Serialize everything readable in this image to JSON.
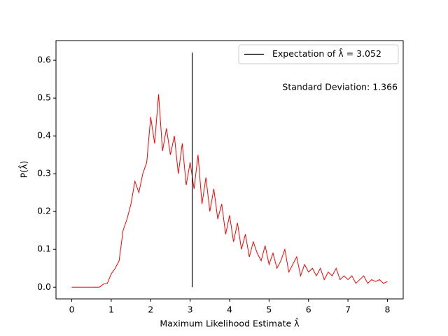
{
  "chart_data": {
    "type": "line",
    "xlabel": "Maximum Likelihood Estimate λ̂",
    "ylabel": "P(λ̂)",
    "annotation": "Standard Deviation: 1.366",
    "color": "#ff0000",
    "x": [
      0,
      0.1,
      0.2,
      0.3,
      0.4,
      0.5,
      0.6,
      0.7,
      0.8,
      0.9,
      1,
      1.1,
      1.2,
      1.3,
      1.4,
      1.5,
      1.6,
      1.7,
      1.8,
      1.9,
      2,
      2.1,
      2.2,
      2.3,
      2.4,
      2.5,
      2.6,
      2.7,
      2.8,
      2.9,
      3,
      3.1,
      3.2,
      3.3,
      3.4,
      3.5,
      3.6,
      3.7,
      3.8,
      3.9,
      4,
      4.1,
      4.2,
      4.3,
      4.4,
      4.5,
      4.6,
      4.7,
      4.8,
      4.9,
      5,
      5.1,
      5.2,
      5.3,
      5.4,
      5.5,
      5.6,
      5.7,
      5.8,
      5.9,
      6,
      6.1,
      6.2,
      6.3,
      6.4,
      6.5,
      6.6,
      6.7,
      6.8,
      6.9,
      7,
      7.1,
      7.2,
      7.3,
      7.4,
      7.5,
      7.6,
      7.7,
      7.8,
      7.9,
      8
    ],
    "values": [
      0,
      0,
      0,
      0,
      0,
      0,
      0,
      0,
      0.008,
      0.01,
      0.035,
      0.05,
      0.07,
      0.15,
      0.18,
      0.22,
      0.28,
      0.25,
      0.3,
      0.33,
      0.45,
      0.38,
      0.51,
      0.36,
      0.42,
      0.35,
      0.4,
      0.3,
      0.38,
      0.27,
      0.33,
      0.26,
      0.35,
      0.22,
      0.29,
      0.2,
      0.26,
      0.18,
      0.22,
      0.14,
      0.19,
      0.12,
      0.17,
      0.1,
      0.14,
      0.08,
      0.12,
      0.09,
      0.07,
      0.11,
      0.06,
      0.09,
      0.05,
      0.07,
      0.1,
      0.04,
      0.06,
      0.08,
      0.03,
      0.06,
      0.04,
      0.05,
      0.03,
      0.05,
      0.02,
      0.04,
      0.03,
      0.05,
      0.02,
      0.03,
      0.02,
      0.03,
      0.01,
      0.02,
      0.03,
      0.01,
      0.02,
      0.015,
      0.02,
      0.01,
      0.015
    ],
    "vlines": [
      {
        "x": 3.052,
        "ymin": 0,
        "ymax": 0.62,
        "color": "#000000",
        "label": "Expectation of λ̂ = 3.052"
      }
    ],
    "legend": "upper right",
    "xlim": [
      -0.4,
      8.4
    ],
    "ylim": [
      -0.031,
      0.652
    ],
    "xticks": [
      0,
      1,
      2,
      3,
      4,
      5,
      6,
      7,
      8
    ],
    "yticks": [
      {
        "value": 0,
        "label": "0.0"
      },
      {
        "value": 0.1,
        "label": "0.1"
      },
      {
        "value": 0.2,
        "label": "0.2"
      },
      {
        "value": 0.3,
        "label": "0.3"
      },
      {
        "value": 0.4,
        "label": "0.4"
      },
      {
        "value": 0.5,
        "label": "0.5"
      },
      {
        "value": 0.6,
        "label": "0.6"
      }
    ]
  }
}
